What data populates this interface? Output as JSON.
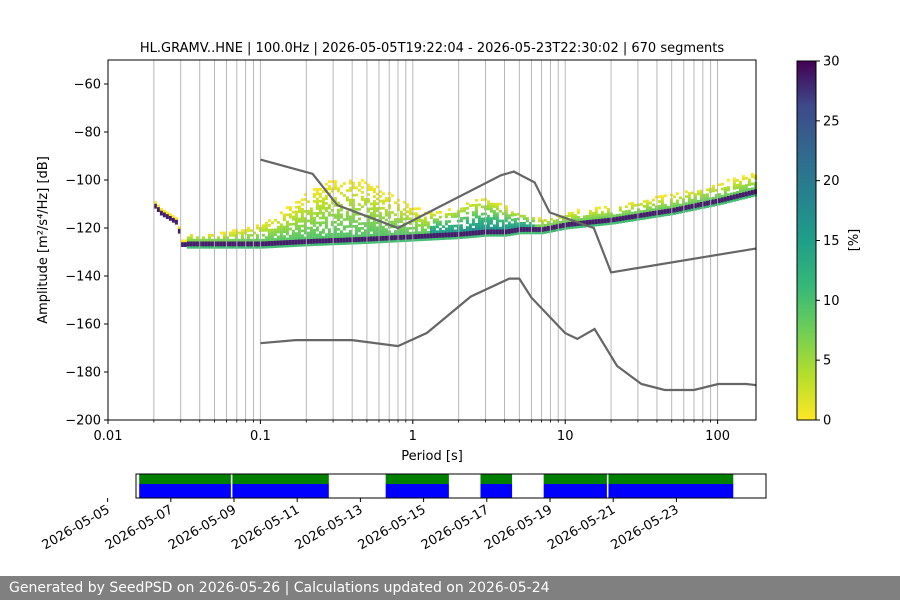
{
  "chart_data": [
    {
      "type": "heatmap",
      "title": "HL.GRAMV..HNE | 100.0Hz | 2026-05-05T19:22:04 - 2026-05-23T22:30:02 | 670 segments",
      "xlabel": "Period [s]",
      "ylabel": "Amplitude [m²/s⁴/Hz] [dB]",
      "x_scale": "log",
      "xlim": [
        0.01,
        180
      ],
      "ylim": [
        -200,
        -50
      ],
      "x_ticks": [
        0.01,
        0.1,
        1,
        10,
        100
      ],
      "x_tick_labels": [
        "0.01",
        "0.1",
        "1",
        "10",
        "100"
      ],
      "y_ticks": [
        -60,
        -80,
        -100,
        -120,
        -140,
        -160,
        -180,
        -200
      ],
      "y_tick_labels": [
        "−60",
        "−80",
        "−100",
        "−120",
        "−140",
        "−160",
        "−180",
        "−200"
      ],
      "grid": "vertical",
      "colorbar": {
        "label": "[%]",
        "range": [
          0,
          30
        ],
        "ticks": [
          0,
          5,
          10,
          15,
          20,
          25,
          30
        ],
        "tick_labels": [
          "0",
          "5",
          "10",
          "15",
          "20",
          "25",
          "30"
        ],
        "colormap": "viridis_r"
      },
      "mode_curve": {
        "period": [
          0.02,
          0.022,
          0.025,
          0.028,
          0.03,
          0.05,
          0.1,
          0.2,
          0.5,
          1,
          2,
          3,
          4,
          5,
          7,
          10,
          20,
          50,
          100,
          180
        ],
        "db": [
          -110,
          -113,
          -115,
          -117,
          -126,
          -126,
          -126,
          -125,
          -124,
          -123,
          -122,
          -121,
          -121,
          -120,
          -120,
          -118,
          -116,
          -112,
          -108,
          -104
        ]
      },
      "nhnm": {
        "period": [
          0.1,
          0.22,
          0.32,
          0.8,
          3.8,
          4.6,
          6.3,
          7.9,
          15.4,
          20,
          180
        ],
        "db": [
          -91.5,
          -97.4,
          -110.5,
          -120,
          -98,
          -96.5,
          -101,
          -113.5,
          -120,
          -138.5,
          -128.5
        ]
      },
      "nlnm": {
        "period": [
          0.1,
          0.17,
          0.4,
          0.8,
          1.24,
          2.4,
          4.3,
          5,
          6,
          10,
          12,
          15.6,
          21.9,
          31.6,
          45,
          70,
          101,
          154,
          180
        ],
        "db": [
          -168,
          -166.7,
          -166.7,
          -169.2,
          -163.7,
          -148.6,
          -141.1,
          -141.1,
          -149,
          -163.8,
          -166.2,
          -162.1,
          -177.5,
          -185,
          -187.5,
          -187.5,
          -185,
          -185,
          -185.5
        ]
      }
    },
    {
      "type": "timeline",
      "x_ticks": [
        "2026-05-05",
        "2026-05-07",
        "2026-05-09",
        "2026-05-11",
        "2026-05-13",
        "2026-05-15",
        "2026-05-17",
        "2026-05-19",
        "2026-05-21",
        "2026-05-23"
      ],
      "data_segments": [
        [
          "2026-05-06",
          "2026-05-08.9"
        ],
        [
          "2026-05-08.95",
          "2026-05-12"
        ],
        [
          "2026-05-13.8",
          "2026-05-15.8"
        ],
        [
          "2026-05-16.8",
          "2026-05-17.8"
        ],
        [
          "2026-05-18.8",
          "2026-05-20.8"
        ],
        [
          "2026-05-20.85",
          "2026-05-24.8"
        ]
      ],
      "colors": {
        "top": "#008000",
        "bottom": "#0000ff"
      }
    }
  ],
  "footer": {
    "text": "Generated by SeedPSD on 2026-05-26 | Calculations updated on 2026-05-24"
  }
}
